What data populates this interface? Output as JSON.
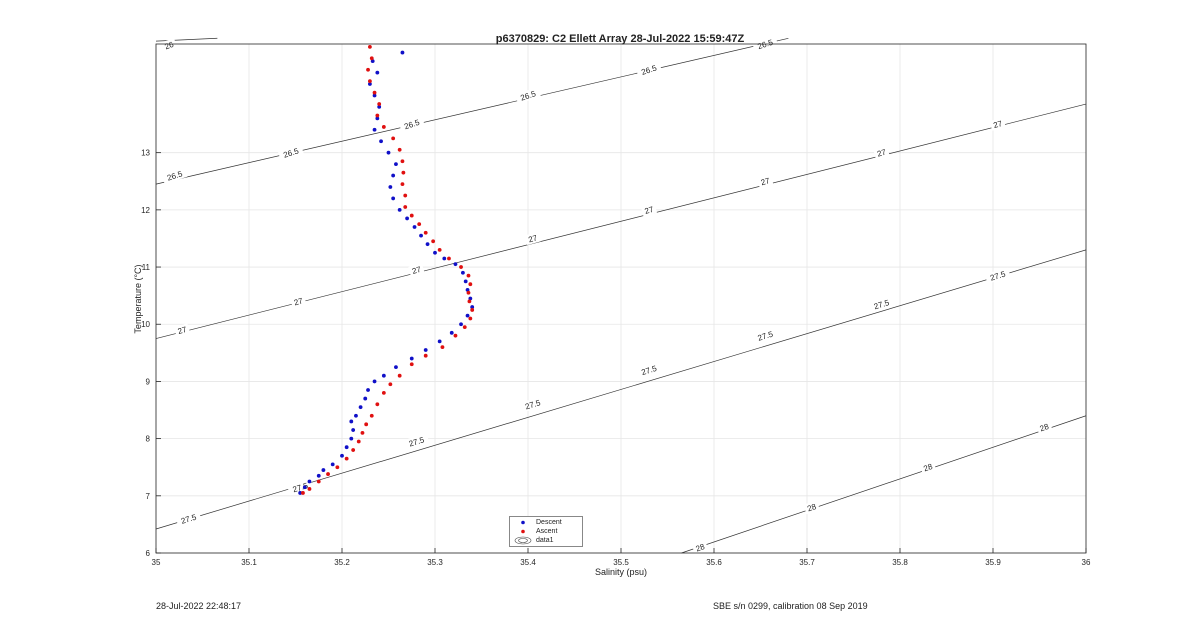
{
  "chart_data": {
    "type": "scatter",
    "title": "p6370829: C2 Ellett Array 28-Jul-2022 15:59:47Z",
    "xlabel": "Salinity (psu)",
    "ylabel": "Temperature (°C)",
    "xlim": [
      35,
      36
    ],
    "ylim": [
      6,
      14.9
    ],
    "xticks": [
      "35",
      "35.1",
      "35.2",
      "35.3",
      "35.4",
      "35.5",
      "35.6",
      "35.7",
      "35.8",
      "35.9",
      "36"
    ],
    "yticks": [
      "6",
      "7",
      "8",
      "9",
      "10",
      "11",
      "12",
      "13"
    ],
    "grid": true,
    "legend_position": "bottom-center",
    "legend": [
      "Descent",
      "Ascent",
      "data1"
    ],
    "series": [
      {
        "name": "Descent",
        "color": "#1010c8",
        "points": [
          [
            35.155,
            7.05
          ],
          [
            35.16,
            7.15
          ],
          [
            35.165,
            7.25
          ],
          [
            35.175,
            7.35
          ],
          [
            35.18,
            7.45
          ],
          [
            35.19,
            7.55
          ],
          [
            35.2,
            7.7
          ],
          [
            35.205,
            7.85
          ],
          [
            35.21,
            8.0
          ],
          [
            35.212,
            8.15
          ],
          [
            35.21,
            8.3
          ],
          [
            35.215,
            8.4
          ],
          [
            35.22,
            8.55
          ],
          [
            35.225,
            8.7
          ],
          [
            35.228,
            8.85
          ],
          [
            35.235,
            9.0
          ],
          [
            35.245,
            9.1
          ],
          [
            35.258,
            9.25
          ],
          [
            35.275,
            9.4
          ],
          [
            35.29,
            9.55
          ],
          [
            35.305,
            9.7
          ],
          [
            35.318,
            9.85
          ],
          [
            35.328,
            10.0
          ],
          [
            35.335,
            10.15
          ],
          [
            35.34,
            10.3
          ],
          [
            35.338,
            10.45
          ],
          [
            35.335,
            10.6
          ],
          [
            35.333,
            10.75
          ],
          [
            35.33,
            10.9
          ],
          [
            35.322,
            11.05
          ],
          [
            35.31,
            11.15
          ],
          [
            35.3,
            11.25
          ],
          [
            35.292,
            11.4
          ],
          [
            35.285,
            11.55
          ],
          [
            35.278,
            11.7
          ],
          [
            35.27,
            11.85
          ],
          [
            35.262,
            12.0
          ],
          [
            35.255,
            12.2
          ],
          [
            35.252,
            12.4
          ],
          [
            35.255,
            12.6
          ],
          [
            35.258,
            12.8
          ],
          [
            35.25,
            13.0
          ],
          [
            35.242,
            13.2
          ],
          [
            35.235,
            13.4
          ],
          [
            35.238,
            13.6
          ],
          [
            35.24,
            13.8
          ],
          [
            35.235,
            14.0
          ],
          [
            35.23,
            14.2
          ],
          [
            35.238,
            14.4
          ],
          [
            35.233,
            14.6
          ],
          [
            35.265,
            14.75
          ]
        ]
      },
      {
        "name": "Ascent",
        "color": "#e01010",
        "points": [
          [
            35.158,
            7.05
          ],
          [
            35.165,
            7.12
          ],
          [
            35.175,
            7.25
          ],
          [
            35.185,
            7.38
          ],
          [
            35.195,
            7.5
          ],
          [
            35.205,
            7.65
          ],
          [
            35.212,
            7.8
          ],
          [
            35.218,
            7.95
          ],
          [
            35.222,
            8.1
          ],
          [
            35.226,
            8.25
          ],
          [
            35.232,
            8.4
          ],
          [
            35.238,
            8.6
          ],
          [
            35.245,
            8.8
          ],
          [
            35.252,
            8.95
          ],
          [
            35.262,
            9.1
          ],
          [
            35.275,
            9.3
          ],
          [
            35.29,
            9.45
          ],
          [
            35.308,
            9.6
          ],
          [
            35.322,
            9.8
          ],
          [
            35.332,
            9.95
          ],
          [
            35.338,
            10.1
          ],
          [
            35.34,
            10.25
          ],
          [
            35.337,
            10.4
          ],
          [
            35.336,
            10.55
          ],
          [
            35.338,
            10.7
          ],
          [
            35.336,
            10.85
          ],
          [
            35.328,
            11.0
          ],
          [
            35.315,
            11.15
          ],
          [
            35.305,
            11.3
          ],
          [
            35.298,
            11.45
          ],
          [
            35.29,
            11.6
          ],
          [
            35.283,
            11.75
          ],
          [
            35.275,
            11.9
          ],
          [
            35.268,
            12.05
          ],
          [
            35.268,
            12.25
          ],
          [
            35.265,
            12.45
          ],
          [
            35.266,
            12.65
          ],
          [
            35.265,
            12.85
          ],
          [
            35.262,
            13.05
          ],
          [
            35.255,
            13.25
          ],
          [
            35.245,
            13.45
          ],
          [
            35.238,
            13.65
          ],
          [
            35.24,
            13.85
          ],
          [
            35.235,
            14.05
          ],
          [
            35.23,
            14.25
          ],
          [
            35.228,
            14.45
          ],
          [
            35.232,
            14.65
          ],
          [
            35.23,
            14.85
          ]
        ]
      }
    ],
    "contours": [
      {
        "label": "26",
        "start": [
          35.0,
          14.95
        ],
        "end": [
          35.066,
          15.0
        ]
      },
      {
        "label": "26.5",
        "start": [
          35.0,
          12.45
        ],
        "end": [
          35.68,
          15.0
        ]
      },
      {
        "label": "27",
        "start": [
          35.0,
          9.75
        ],
        "end": [
          36.0,
          13.85
        ]
      },
      {
        "label": "27.5",
        "start": [
          35.0,
          6.42
        ],
        "end": [
          36.0,
          11.3
        ]
      },
      {
        "label": "28",
        "start": [
          35.565,
          6.0
        ],
        "end": [
          36.0,
          8.4
        ]
      }
    ],
    "contour_labels": [
      {
        "text": "26",
        "x": 35.014,
        "y": 14.88,
        "angle": -20
      },
      {
        "text": "26.5",
        "x": 35.02,
        "y": 12.6,
        "angle": -18
      },
      {
        "text": "26.5",
        "x": 35.145,
        "y": 13.0,
        "angle": -18
      },
      {
        "text": "26.5",
        "x": 35.275,
        "y": 13.5,
        "angle": -18
      },
      {
        "text": "26.5",
        "x": 35.4,
        "y": 14.0,
        "angle": -18
      },
      {
        "text": "26.5",
        "x": 35.53,
        "y": 14.45,
        "angle": -18
      },
      {
        "text": "26.5",
        "x": 35.655,
        "y": 14.9,
        "angle": -18
      },
      {
        "text": "27",
        "x": 35.028,
        "y": 9.9,
        "angle": -16
      },
      {
        "text": "27",
        "x": 35.153,
        "y": 10.4,
        "angle": -16
      },
      {
        "text": "27",
        "x": 35.28,
        "y": 10.95,
        "angle": -16
      },
      {
        "text": "27",
        "x": 35.405,
        "y": 11.5,
        "angle": -16
      },
      {
        "text": "27",
        "x": 35.53,
        "y": 12.0,
        "angle": -16
      },
      {
        "text": "27",
        "x": 35.655,
        "y": 12.5,
        "angle": -16
      },
      {
        "text": "27",
        "x": 35.78,
        "y": 13.0,
        "angle": -16
      },
      {
        "text": "27",
        "x": 35.905,
        "y": 13.5,
        "angle": -16
      },
      {
        "text": "27.5",
        "x": 35.035,
        "y": 6.6,
        "angle": -17
      },
      {
        "text": "27.5",
        "x": 35.155,
        "y": 7.15,
        "angle": -17
      },
      {
        "text": "27.5",
        "x": 35.28,
        "y": 7.95,
        "angle": -17
      },
      {
        "text": "27.5",
        "x": 35.405,
        "y": 8.6,
        "angle": -17
      },
      {
        "text": "27.5",
        "x": 35.53,
        "y": 9.2,
        "angle": -17
      },
      {
        "text": "27.5",
        "x": 35.655,
        "y": 9.8,
        "angle": -17
      },
      {
        "text": "27.5",
        "x": 35.78,
        "y": 10.35,
        "angle": -17
      },
      {
        "text": "27.5",
        "x": 35.905,
        "y": 10.85,
        "angle": -17
      },
      {
        "text": "28",
        "x": 35.585,
        "y": 6.1,
        "angle": -19
      },
      {
        "text": "28",
        "x": 35.705,
        "y": 6.8,
        "angle": -19
      },
      {
        "text": "28",
        "x": 35.83,
        "y": 7.5,
        "angle": -19
      },
      {
        "text": "28",
        "x": 35.955,
        "y": 8.2,
        "angle": -19
      }
    ]
  },
  "footer": {
    "left": "28-Jul-2022 22:48:17",
    "right": "SBE s/n 0299, calibration 08 Sep 2019"
  }
}
